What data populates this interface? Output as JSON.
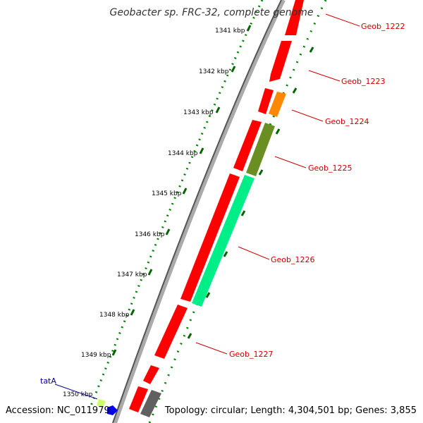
{
  "title": "Geobacter sp. FRC-32, complete genome",
  "footer": {
    "accession": "Accession: NC_011979",
    "topology": "Topology: circular; Length: 4,304,501 bp; Genes: 3,855"
  },
  "colors": {
    "backbone": "#777777",
    "tick_line": "#008000",
    "gene_label": "#cc0000",
    "trna_label": "#000099",
    "genes_red": "#ff0000",
    "gene_orange": "#ff8800",
    "gene_olive": "#6b8e23",
    "gene_aqua": "#00ee88",
    "gene_grey": "#606060",
    "gene_blue": "#0000ee",
    "gene_lightgreen": "#ccff66"
  },
  "kbp_ticks": [
    "1341 kbp",
    "1342 kbp",
    "1343 kbp",
    "1344 kbp",
    "1345 kbp",
    "1346 kbp",
    "1347 kbp",
    "1348 kbp",
    "1349 kbp",
    "1350 kbp"
  ],
  "gene_labels": [
    "Geob_1222",
    "Geob_1223",
    "Geob_1224",
    "Geob_1225",
    "Geob_1226",
    "Geob_1227"
  ],
  "trna_label": "tatA"
}
